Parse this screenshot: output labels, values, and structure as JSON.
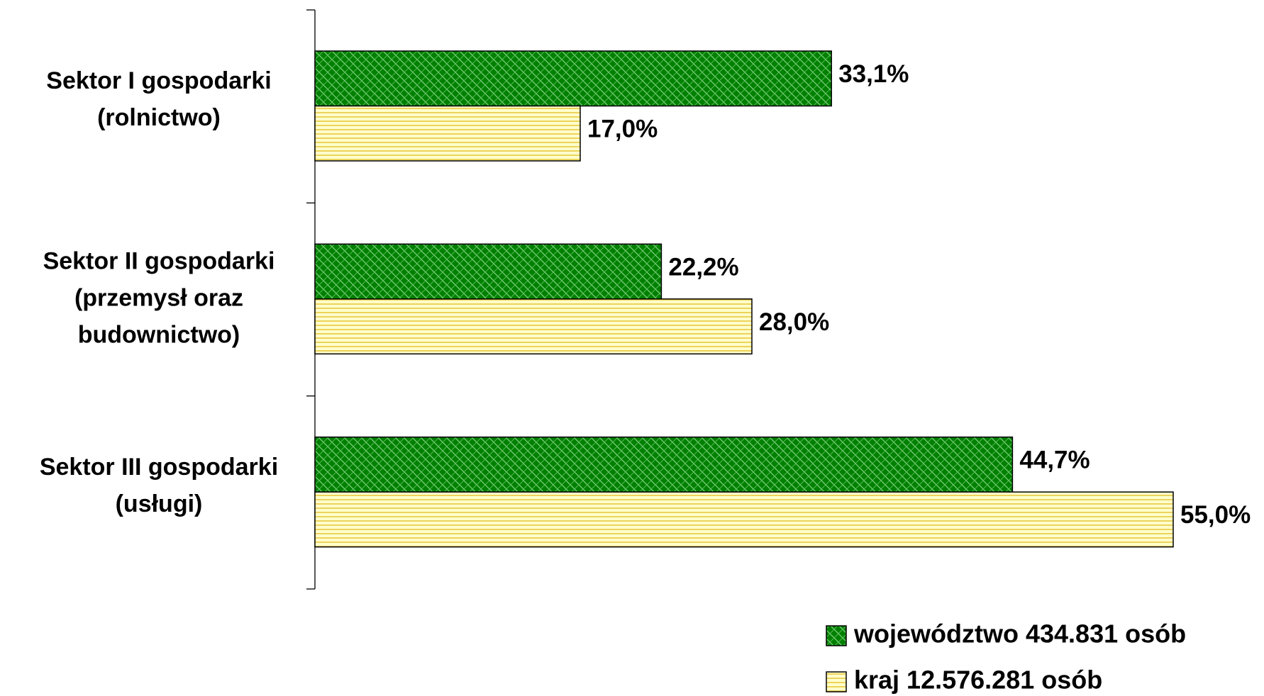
{
  "chart_data": {
    "type": "bar",
    "orientation": "horizontal",
    "categories": [
      "Sektor I gospodarki\n(rolnictwo)",
      "Sektor II gospodarki\n(przemysł oraz\nbudownictwo)",
      "Sektor III gospodarki\n(usługi)"
    ],
    "series": [
      {
        "name": "województwo 434.831 osób",
        "color": "#008000",
        "values": [
          33.1,
          22.2,
          44.7
        ],
        "value_labels": [
          "33,1%",
          "22,2%",
          "44,7%"
        ]
      },
      {
        "name": "kraj 12.576.281 osób",
        "color": "#ffffcc",
        "values": [
          17.0,
          28.0,
          55.0
        ],
        "value_labels": [
          "17,0%",
          "28,0%",
          "55,0%"
        ]
      }
    ],
    "xlim": [
      0,
      60
    ],
    "legend": "bottom-right"
  }
}
